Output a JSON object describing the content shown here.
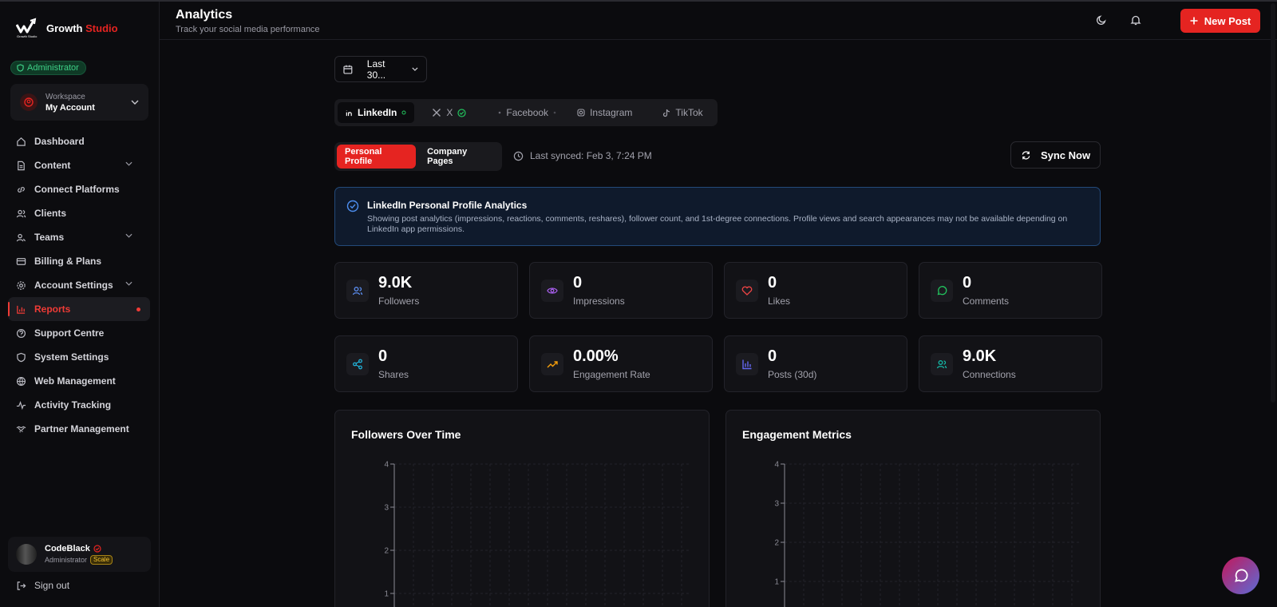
{
  "brand": {
    "name_main": "Growth",
    "name_accent": "Studio",
    "logo_caption": "Growth Studio"
  },
  "sidebar": {
    "role_badge": "Administrator",
    "workspace": {
      "label": "Workspace",
      "name": "My Account"
    },
    "items": [
      {
        "label": "Dashboard",
        "icon": "home-icon"
      },
      {
        "label": "Content",
        "icon": "file-icon",
        "has_children": true
      },
      {
        "label": "Connect Platforms",
        "icon": "link-icon"
      },
      {
        "label": "Clients",
        "icon": "users-icon"
      },
      {
        "label": "Teams",
        "icon": "team-icon",
        "has_children": true
      },
      {
        "label": "Billing & Plans",
        "icon": "card-icon"
      },
      {
        "label": "Account Settings",
        "icon": "gear-icon",
        "has_children": true
      },
      {
        "label": "Reports",
        "icon": "bar-chart-icon",
        "active": true
      },
      {
        "label": "Support Centre",
        "icon": "help-icon"
      },
      {
        "label": "System Settings",
        "icon": "shield-icon"
      },
      {
        "label": "Web Management",
        "icon": "globe-icon"
      },
      {
        "label": "Activity Tracking",
        "icon": "activity-icon"
      },
      {
        "label": "Partner Management",
        "icon": "handshake-icon"
      }
    ],
    "user": {
      "name": "CodeBlack",
      "role": "Administrator",
      "plan": "Scale"
    },
    "sign_out": "Sign out"
  },
  "header": {
    "title": "Analytics",
    "subtitle": "Track your social media performance",
    "new_post_label": "New Post"
  },
  "filters": {
    "date_range": "Last 30...",
    "platforms": [
      {
        "label": "LinkedIn",
        "active": true
      },
      {
        "label": "X"
      },
      {
        "label": "Facebook"
      },
      {
        "label": "Instagram"
      },
      {
        "label": "TikTok"
      }
    ],
    "profile_tabs": [
      {
        "label": "Personal Profile",
        "active": true
      },
      {
        "label": "Company Pages"
      }
    ],
    "last_synced": "Last synced: Feb 3, 7:24 PM",
    "sync_label": "Sync Now"
  },
  "info": {
    "title": "LinkedIn Personal Profile Analytics",
    "text": "Showing post analytics (impressions, reactions, comments, reshares), follower count, and 1st-degree connections. Profile views and search appearances may not be available depending on LinkedIn app permissions."
  },
  "stats": [
    {
      "value": "9.0K",
      "label": "Followers",
      "icon": "users-icon",
      "color": "#5b8def"
    },
    {
      "value": "0",
      "label": "Impressions",
      "icon": "eye-icon",
      "color": "#a45de8"
    },
    {
      "value": "0",
      "label": "Likes",
      "icon": "heart-icon",
      "color": "#ef4444"
    },
    {
      "value": "0",
      "label": "Comments",
      "icon": "comment-icon",
      "color": "#22c55e"
    },
    {
      "value": "0",
      "label": "Shares",
      "icon": "share-icon",
      "color": "#22b8e0"
    },
    {
      "value": "0.00%",
      "label": "Engagement Rate",
      "icon": "trending-up-icon",
      "color": "#f59e0b"
    },
    {
      "value": "0",
      "label": "Posts (30d)",
      "icon": "bar-chart-icon",
      "color": "#6366f1"
    },
    {
      "value": "9.0K",
      "label": "Connections",
      "icon": "users-icon",
      "color": "#14b8a6"
    }
  ],
  "chart_data": [
    {
      "type": "line",
      "title": "Followers Over Time",
      "ylim": [
        0,
        4
      ],
      "yticks": [
        "4",
        "3",
        "2",
        "1"
      ],
      "series": []
    },
    {
      "type": "line",
      "title": "Engagement Metrics",
      "ylim": [
        0,
        4
      ],
      "yticks": [
        "4",
        "3",
        "2",
        "1"
      ],
      "series": []
    }
  ]
}
